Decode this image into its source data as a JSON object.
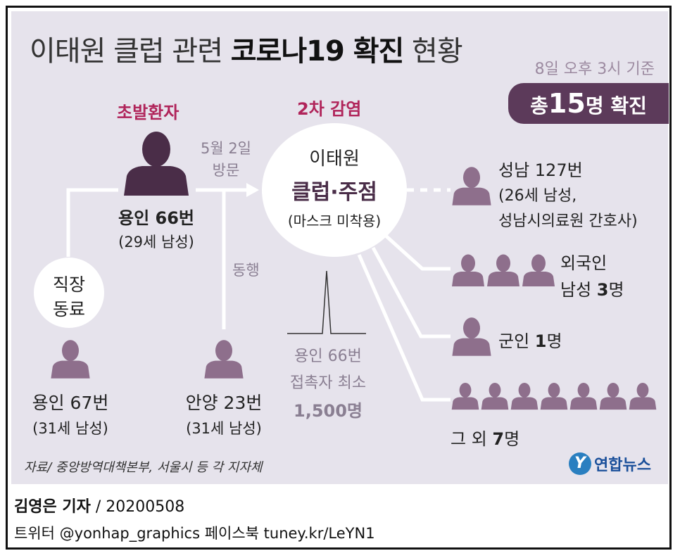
{
  "title": {
    "normal_prefix": "이태원 클럽 관련 ",
    "bold": "코로나19 확진",
    "normal_suffix": " 현황"
  },
  "basis_time": "8일 오후 3시 기준",
  "total": {
    "prefix": "총",
    "number": "15",
    "suffix": "명 확진"
  },
  "index_patient": {
    "label": "초발환자",
    "name": "용인 66번",
    "detail": "(29세 남성)"
  },
  "visit": {
    "date": "5월 2일",
    "action": "방문"
  },
  "secondary_label": "2차 감염",
  "club": {
    "line1": "이태원",
    "line2": "클럽·주점",
    "line3": "(마스크 미착용)"
  },
  "coworker": {
    "line1": "직장",
    "line2": "동료"
  },
  "accompany": "동행",
  "person_yongin67": {
    "name": "용인 67번",
    "detail": "(31세 남성)"
  },
  "person_anyang23": {
    "name": "안양 23번",
    "detail": "(31세 남성)"
  },
  "contacts": {
    "line1": "용인 66번",
    "line2": "접촉자 최소",
    "line3": "1,500명"
  },
  "seongnam": {
    "name": "성남 127번",
    "detail1": "(26세 남성,",
    "detail2": "성남시의료원 간호사)"
  },
  "foreign": {
    "line1": "외국인",
    "line2_prefix": "남성 ",
    "line2_num": "3",
    "line2_suffix": "명"
  },
  "soldier": {
    "prefix": "군인 ",
    "num": "1",
    "suffix": "명"
  },
  "others": {
    "prefix": "그 외 ",
    "num": "7",
    "suffix": "명"
  },
  "source": "자료/ 중앙방역대책본부, 서울시 등 각 지자체",
  "logo": {
    "mark": "Y",
    "text": "연합뉴스"
  },
  "credit": {
    "reporter": "김영은 기자",
    "separator": " / ",
    "date": "20200508"
  },
  "social": "트위터 @yonhap_graphics  페이스북 tuney.kr/LeYN1",
  "colors": {
    "panel": "#e6e3ec",
    "accent": "#5c3a5a",
    "figure": "#8e6f8c",
    "figure_dark": "#4a2d48",
    "highlight": "#b0245a"
  }
}
